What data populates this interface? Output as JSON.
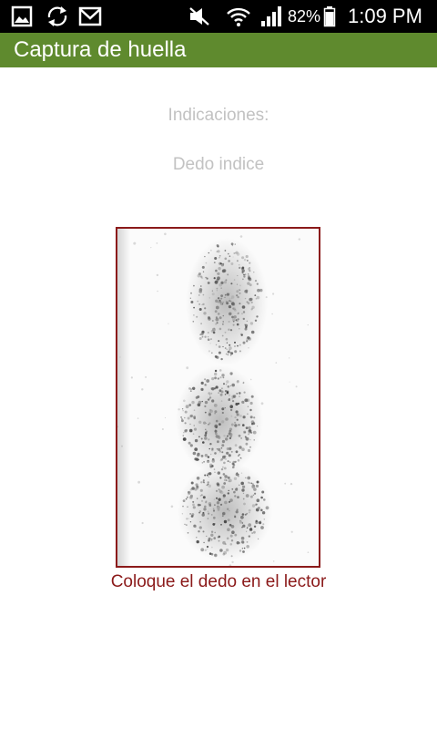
{
  "status_bar": {
    "battery": "82%",
    "time": "1:09 PM",
    "left_icons": [
      "gallery-icon",
      "sync-icon",
      "gmail-icon"
    ],
    "right_icons": [
      "mute-icon",
      "wifi-icon",
      "signal-icon",
      "battery-icon"
    ]
  },
  "app_bar": {
    "title": "Captura de huella",
    "color": "#5f8a2e"
  },
  "main": {
    "instructions_title": "Indicaciones:",
    "finger_label": "Dedo indice",
    "fingerprint_image": "fingerprint-scan-image",
    "status_message": "Coloque el dedo en el lector",
    "frame_color": "#8b1a1a"
  }
}
